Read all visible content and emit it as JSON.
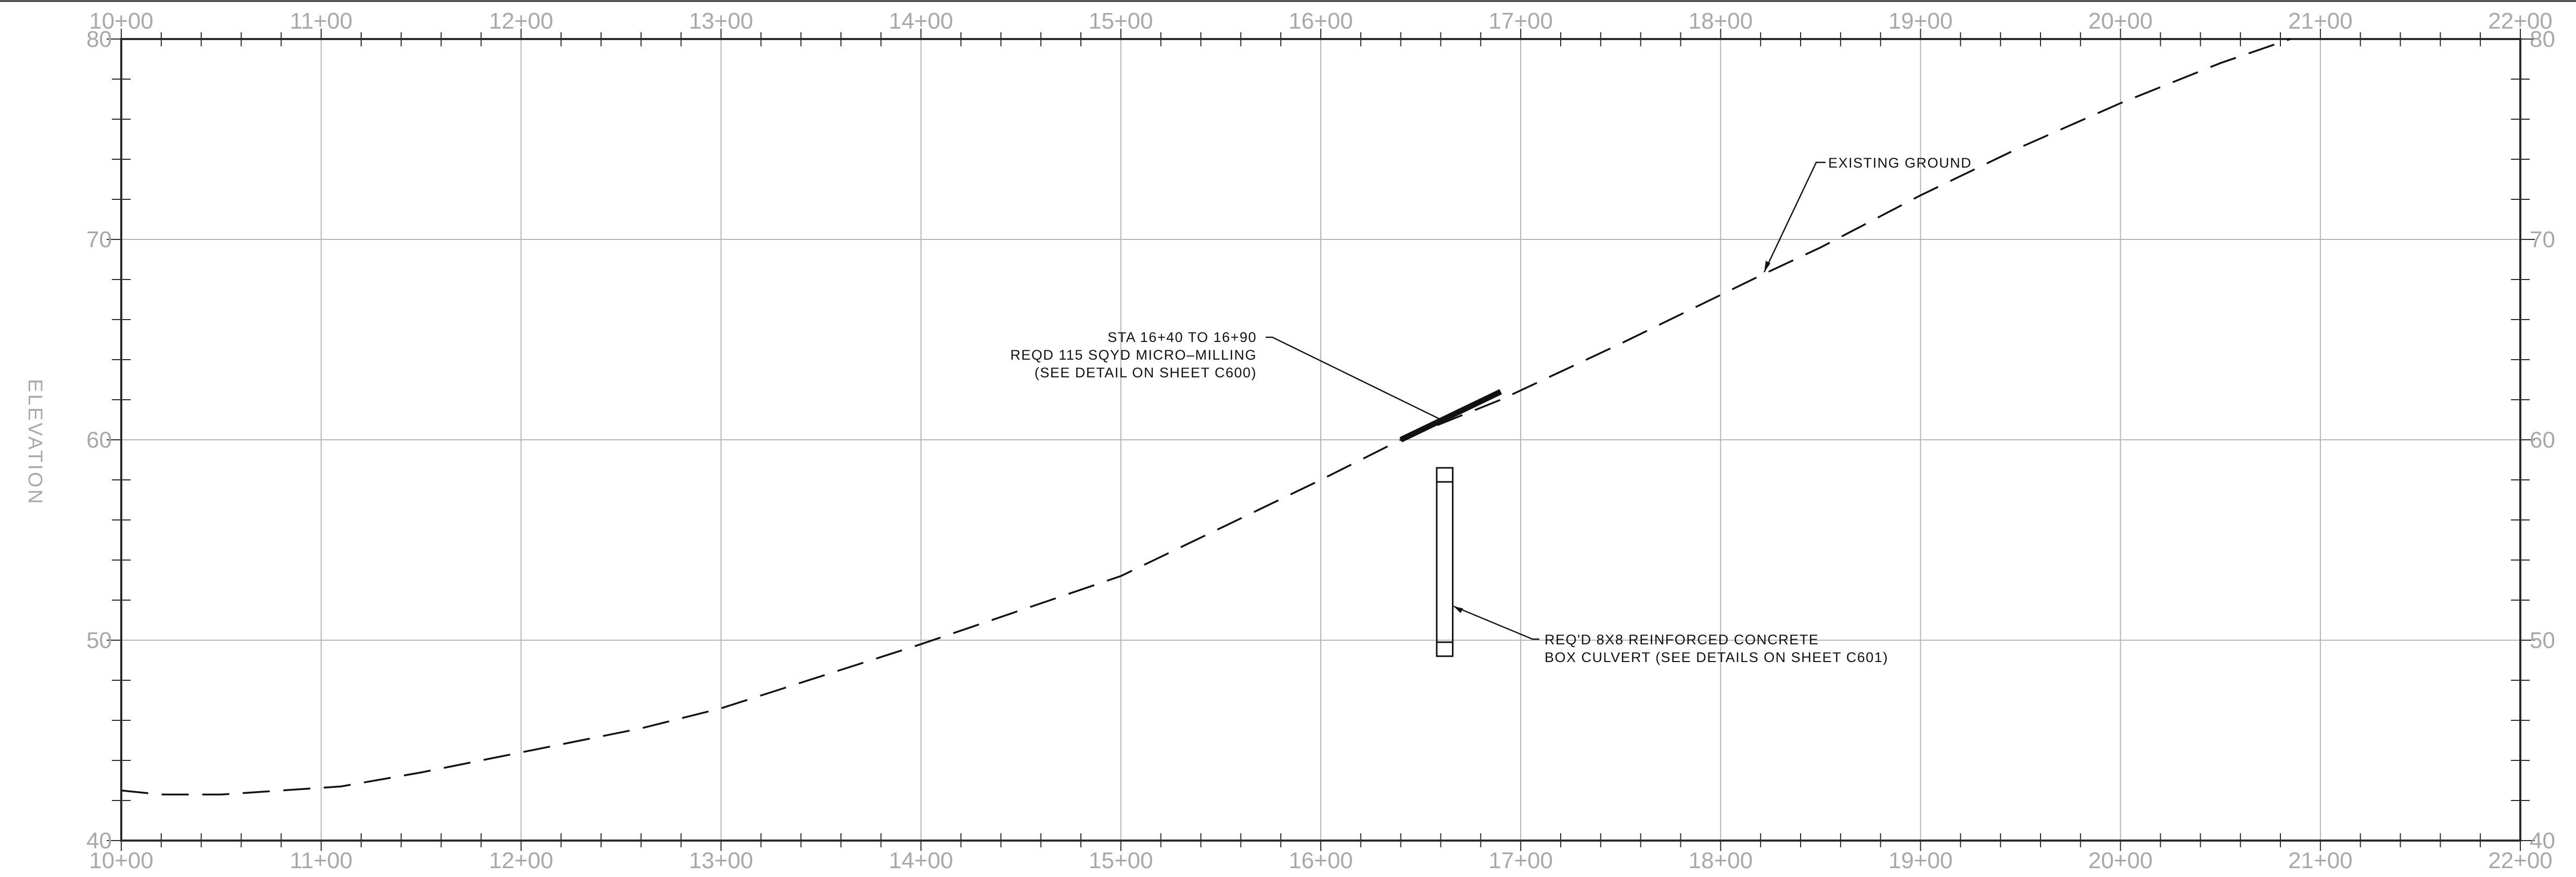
{
  "sheet": {
    "y_axis_label": "ELEVATION",
    "station_labels": [
      "10+00",
      "11+00",
      "12+00",
      "13+00",
      "14+00",
      "15+00",
      "16+00",
      "17+00",
      "18+00",
      "19+00",
      "20+00",
      "21+00",
      "22+00"
    ],
    "elevation_labels": [
      "80",
      "70",
      "60",
      "50",
      "40"
    ],
    "colors": {
      "gridline": "#b4b4b4",
      "frame": "#2a2a2a",
      "axis_text": "#a8a8a8",
      "linework": "#111111"
    }
  },
  "chart_data": {
    "type": "line",
    "xlim": [
      1000,
      2200
    ],
    "ylim": [
      40,
      80
    ],
    "grid": true,
    "series": [
      {
        "name": "EXISTING GROUND",
        "style": "dashed",
        "x": [
          1000,
          1020,
          1050,
          1080,
          1110,
          1150,
          1200,
          1260,
          1300,
          1350,
          1400,
          1450,
          1500,
          1550,
          1600,
          1640,
          1665,
          1690,
          1750,
          1820,
          1850,
          1900,
          1950,
          2000,
          2050,
          2085
        ],
        "y": [
          42.5,
          42.3,
          42.3,
          42.5,
          42.7,
          43.4,
          44.4,
          45.6,
          46.6,
          48.2,
          49.8,
          51.5,
          53.2,
          55.6,
          58.0,
          60.0,
          61.0,
          62.0,
          64.8,
          68.2,
          69.6,
          72.2,
          74.6,
          76.8,
          78.8,
          80.0
        ]
      }
    ],
    "features": {
      "micro_milling": {
        "sta_start": 1640,
        "sta_end": 1690,
        "elev_start": 60.0,
        "elev_end": 62.4
      },
      "box_culvert": {
        "sta_left": 1658,
        "sta_right": 1666,
        "elev_top": 58.6,
        "elev_bottom": 49.2,
        "inner_top": 57.9,
        "inner_bottom": 49.9
      }
    }
  },
  "annotations": {
    "existing_ground": "EXISTING GROUND",
    "micro_milling": [
      "STA 16+40 TO 16+90",
      "REQD 115 SQYD MICRO–MILLING",
      "(SEE DETAIL ON SHEET C600)"
    ],
    "box_culvert": [
      "REQ'D 8X8 REINFORCED CONCRETE",
      "BOX CULVERT (SEE DETAILS ON SHEET C601)"
    ]
  }
}
